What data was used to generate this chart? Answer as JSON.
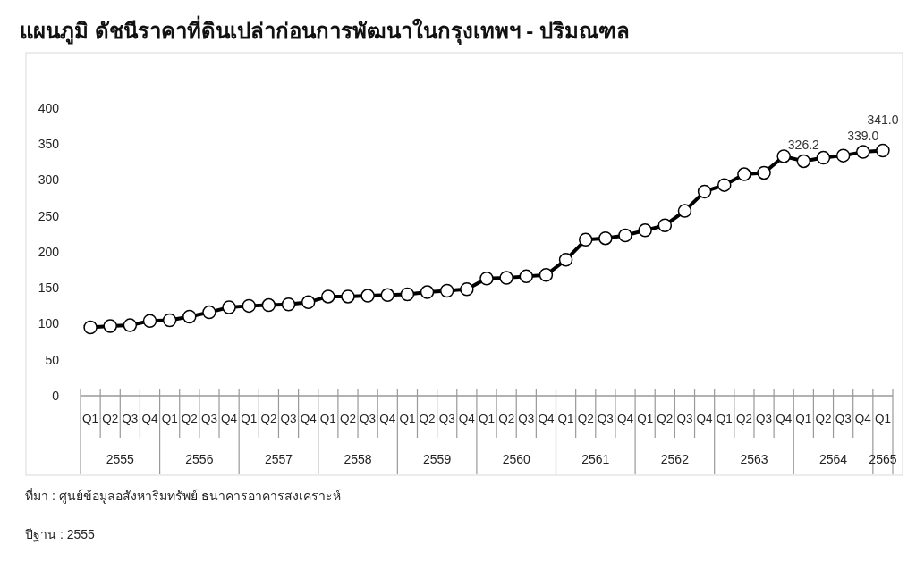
{
  "chart_data": {
    "type": "line",
    "title": "แผนภูมิ  ดัชนีราคาที่ดินเปล่าก่อนการพัฒนาในกรุงเทพฯ - ปริมณฑล",
    "categories": [
      "Q1",
      "Q2",
      "Q3",
      "Q4",
      "Q1",
      "Q2",
      "Q3",
      "Q4",
      "Q1",
      "Q2",
      "Q3",
      "Q4",
      "Q1",
      "Q2",
      "Q3",
      "Q4",
      "Q1",
      "Q2",
      "Q3",
      "Q4",
      "Q1",
      "Q2",
      "Q3",
      "Q4",
      "Q1",
      "Q2",
      "Q3",
      "Q4",
      "Q1",
      "Q2",
      "Q3",
      "Q4",
      "Q1",
      "Q2",
      "Q3",
      "Q4",
      "Q1",
      "Q2",
      "Q3",
      "Q4",
      "Q1"
    ],
    "series": [
      {
        "color": "#000000",
        "values": [
          95,
          97,
          98,
          104,
          105,
          110,
          116,
          123,
          125,
          126,
          127,
          130,
          138,
          138,
          139,
          140,
          141,
          144,
          146,
          148,
          163,
          164,
          166,
          168,
          189,
          217,
          219,
          223,
          230,
          237,
          257,
          284,
          293,
          308,
          310,
          333,
          326.2,
          331,
          334,
          339.0,
          341.0
        ],
        "value_labels": [
          null,
          null,
          null,
          null,
          null,
          null,
          null,
          null,
          null,
          null,
          null,
          null,
          null,
          null,
          null,
          null,
          null,
          null,
          null,
          null,
          null,
          null,
          null,
          null,
          null,
          null,
          null,
          null,
          null,
          null,
          null,
          null,
          null,
          null,
          null,
          null,
          "326.2",
          null,
          null,
          "339.0",
          "341.0"
        ]
      }
    ],
    "ylim": [
      0,
      400
    ],
    "yticks": [
      0,
      50,
      100,
      150,
      200,
      250,
      300,
      350,
      400
    ],
    "grid": false,
    "marker": "circle",
    "line_style": "solid",
    "annotations": [
      "ที่มา : ศูนย์ข้อมูลอสังหาริมทรัพย์ ธนาคารอาคารสงเคราะห์",
      "ปีฐาน : 2555",
      "2555",
      "2556",
      "2557",
      "2558",
      "2559",
      "2560",
      "2561",
      "2562",
      "2563",
      "2564",
      "2565"
    ]
  }
}
